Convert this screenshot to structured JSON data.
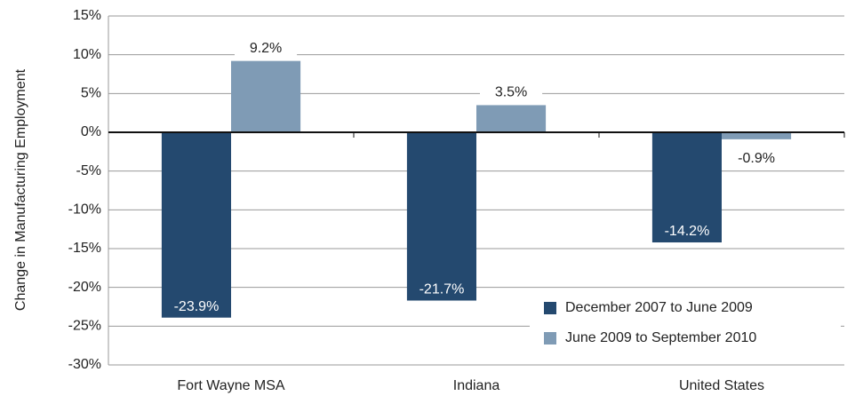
{
  "chart_data": {
    "type": "bar",
    "y_label": "Change in Manufacturing Employment",
    "categories": [
      "Fort Wayne MSA",
      "Indiana",
      "United States"
    ],
    "series": [
      {
        "name": "December 2007 to June 2009",
        "color": "#24496f",
        "values": [
          -23.9,
          -21.7,
          -14.2
        ],
        "value_labels": [
          "-23.9%",
          "-21.7%",
          "-14.2%"
        ]
      },
      {
        "name": "June 2009 to September 2010",
        "color": "#7f9bb5",
        "values": [
          9.2,
          3.5,
          -0.9
        ],
        "value_labels": [
          "9.2%",
          "3.5%",
          "-0.9%"
        ]
      }
    ],
    "ylim": [
      -30,
      15
    ],
    "yticks": [
      {
        "value": -30,
        "label": "-30%"
      },
      {
        "value": -25,
        "label": "-25%"
      },
      {
        "value": -20,
        "label": "-20%"
      },
      {
        "value": -15,
        "label": "-15%"
      },
      {
        "value": -10,
        "label": "-10%"
      },
      {
        "value": -5,
        "label": "-5%"
      },
      {
        "value": 0,
        "label": "0%"
      },
      {
        "value": 5,
        "label": "5%"
      },
      {
        "value": 10,
        "label": "10%"
      },
      {
        "value": 15,
        "label": "15%"
      }
    ],
    "grid": true,
    "legend": "lower right"
  }
}
